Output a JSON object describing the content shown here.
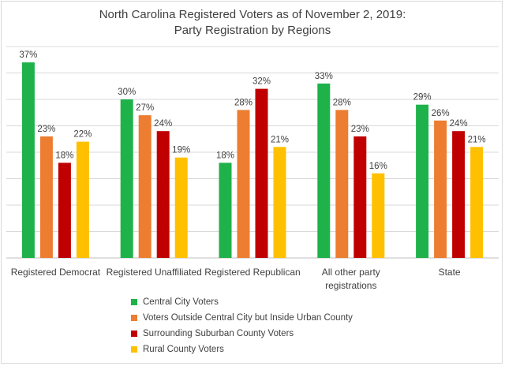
{
  "chart_data": {
    "type": "bar",
    "title": "North Carolina Registered Voters as of November 2, 2019:",
    "subtitle": "Party Registration by Regions",
    "categories": [
      [
        "Registered Democrat"
      ],
      [
        "Registered Unaffiliated"
      ],
      [
        "Registered Republican"
      ],
      [
        "All other party",
        "registrations"
      ],
      [
        "State"
      ]
    ],
    "series": [
      {
        "name": "Central City Voters",
        "color": "#1fb24a",
        "values": [
          37,
          30,
          18,
          33,
          29
        ]
      },
      {
        "name": "Voters Outside Central City but Inside Urban County",
        "color": "#ed7d31",
        "values": [
          23,
          27,
          28,
          28,
          26
        ]
      },
      {
        "name": "Surrounding Suburban County Voters",
        "color": "#c00000",
        "values": [
          18,
          24,
          32,
          23,
          24
        ]
      },
      {
        "name": "Rural County Voters",
        "color": "#ffc000",
        "values": [
          22,
          19,
          21,
          16,
          21
        ]
      }
    ],
    "data_label_suffix": "%",
    "ylim": [
      0,
      40
    ],
    "y_gridlines": [
      0,
      5,
      10,
      15,
      20,
      25,
      30,
      35,
      40
    ],
    "grid": true,
    "legend_position": "bottom"
  }
}
